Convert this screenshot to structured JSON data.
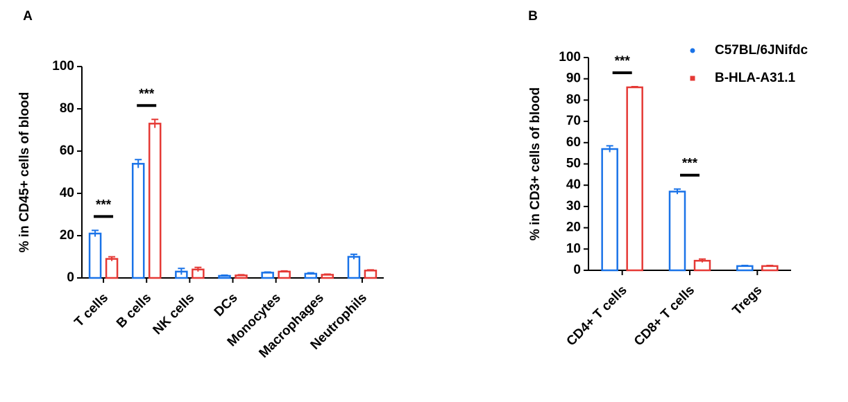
{
  "chart_data": [
    {
      "type": "bar",
      "panel": "A",
      "ylabel": "% in CD45+ cells of blood",
      "categories": [
        "T cells",
        "B cells",
        "NK cells",
        "DCs",
        "Monocytes",
        "Macrophages",
        "Neutrophils"
      ],
      "significance": [
        "***",
        "***",
        null,
        null,
        null,
        null,
        null
      ],
      "series": [
        {
          "name": "C57BL/6JNifdc",
          "color": "#1a73e8",
          "values": [
            21,
            54,
            3,
            1,
            2.5,
            2,
            10
          ],
          "errors": [
            1.5,
            2,
            1.5,
            0.3,
            0.3,
            0.4,
            1.2
          ]
        },
        {
          "name": "B-HLA-A31.1",
          "color": "#e53935",
          "values": [
            9,
            73,
            4,
            1.2,
            3,
            1.5,
            3.5
          ],
          "errors": [
            1,
            2,
            1,
            0.3,
            0.3,
            0.3,
            0.3
          ]
        }
      ],
      "ylim": [
        0,
        100
      ],
      "yticks": [
        0,
        20,
        40,
        60,
        80,
        100
      ]
    },
    {
      "type": "bar",
      "panel": "B",
      "ylabel": "% in CD3+ cells of blood",
      "categories": [
        "CD4+ T cells",
        "CD8+ T cells",
        "Tregs"
      ],
      "significance": [
        "***",
        "***",
        null
      ],
      "series": [
        {
          "name": "C57BL/6JNifdc",
          "color": "#1a73e8",
          "values": [
            57,
            37,
            2
          ],
          "errors": [
            1.5,
            1.2,
            0.3
          ]
        },
        {
          "name": "B-HLA-A31.1",
          "color": "#e53935",
          "values": [
            86,
            4.5,
            2
          ],
          "errors": [
            0.3,
            0.8,
            0.3
          ]
        }
      ],
      "ylim": [
        0,
        100
      ],
      "yticks": [
        0,
        10,
        20,
        30,
        40,
        50,
        60,
        70,
        80,
        90,
        100
      ],
      "legend": "top-right"
    }
  ]
}
